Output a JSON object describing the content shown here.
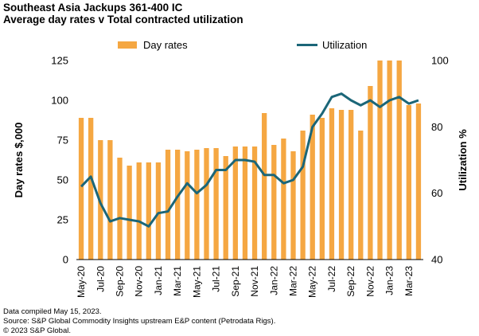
{
  "header": {
    "title": "Southeast Asia Jackups 361-400 IC",
    "subtitle": "Average day rates v Total contracted utilization"
  },
  "footer": {
    "line1": "Data compiled May 15, 2023.",
    "line2": "Source: S&P Global Commodity Insights upstream E&P content (Petrodata Rigs).",
    "line3": "© 2023 S&P Global."
  },
  "colors": {
    "bar": "#F5A742",
    "line": "#1B6678",
    "axis": "#000000"
  },
  "chart_data": {
    "type": "bar+line",
    "categories": [
      "May-20",
      "Jun-20",
      "Jul-20",
      "Aug-20",
      "Sep-20",
      "Oct-20",
      "Nov-20",
      "Dec-20",
      "Jan-21",
      "Feb-21",
      "Mar-21",
      "Apr-21",
      "May-21",
      "Jun-21",
      "Jul-21",
      "Aug-21",
      "Sep-21",
      "Oct-21",
      "Nov-21",
      "Dec-21",
      "Jan-22",
      "Feb-22",
      "Mar-22",
      "Apr-22",
      "May-22",
      "Jun-22",
      "Jul-22",
      "Aug-22",
      "Sep-22",
      "Oct-22",
      "Nov-22",
      "Dec-22",
      "Jan-23",
      "Feb-23",
      "Mar-23",
      "Apr-23"
    ],
    "tick_labels": [
      "May-20",
      "Jul-20",
      "Sep-20",
      "Nov-20",
      "Jan-21",
      "Mar-21",
      "May-21",
      "Jul-21",
      "Sep-21",
      "Nov-21",
      "Jan-22",
      "Mar-22",
      "May-22",
      "Jul-22",
      "Sep-22",
      "Nov-22",
      "Jan-23",
      "Mar-23"
    ],
    "series": [
      {
        "name": "Day rates",
        "type": "bar",
        "axis": "left",
        "values": [
          89,
          89,
          75,
          75,
          64,
          59,
          61,
          61,
          61,
          69,
          69,
          68,
          69,
          70,
          70,
          65,
          71,
          71,
          71,
          92,
          72,
          76,
          68,
          81,
          91,
          89,
          95,
          94,
          94,
          81,
          109,
          125,
          125,
          125,
          97,
          98
        ]
      },
      {
        "name": "Utilization",
        "type": "line",
        "axis": "right",
        "values": [
          62,
          65,
          57,
          51.5,
          52.5,
          52,
          51.5,
          50,
          54,
          54.5,
          59,
          63,
          60,
          62.5,
          67,
          67,
          70,
          70,
          69.5,
          65.5,
          65.5,
          63,
          64,
          68,
          80,
          84,
          89,
          90,
          88,
          86.5,
          88,
          86,
          88,
          89,
          87,
          88
        ]
      }
    ],
    "ylabel": "Day rates $,000",
    "y2label": "Utilization %",
    "ylim": [
      0,
      125
    ],
    "y_ticks": [
      0,
      25,
      50,
      75,
      100,
      125
    ],
    "y2lim": [
      40,
      100
    ],
    "y2_ticks": [
      40,
      60,
      80,
      100
    ],
    "legend_position": "top-center",
    "grid": false
  }
}
